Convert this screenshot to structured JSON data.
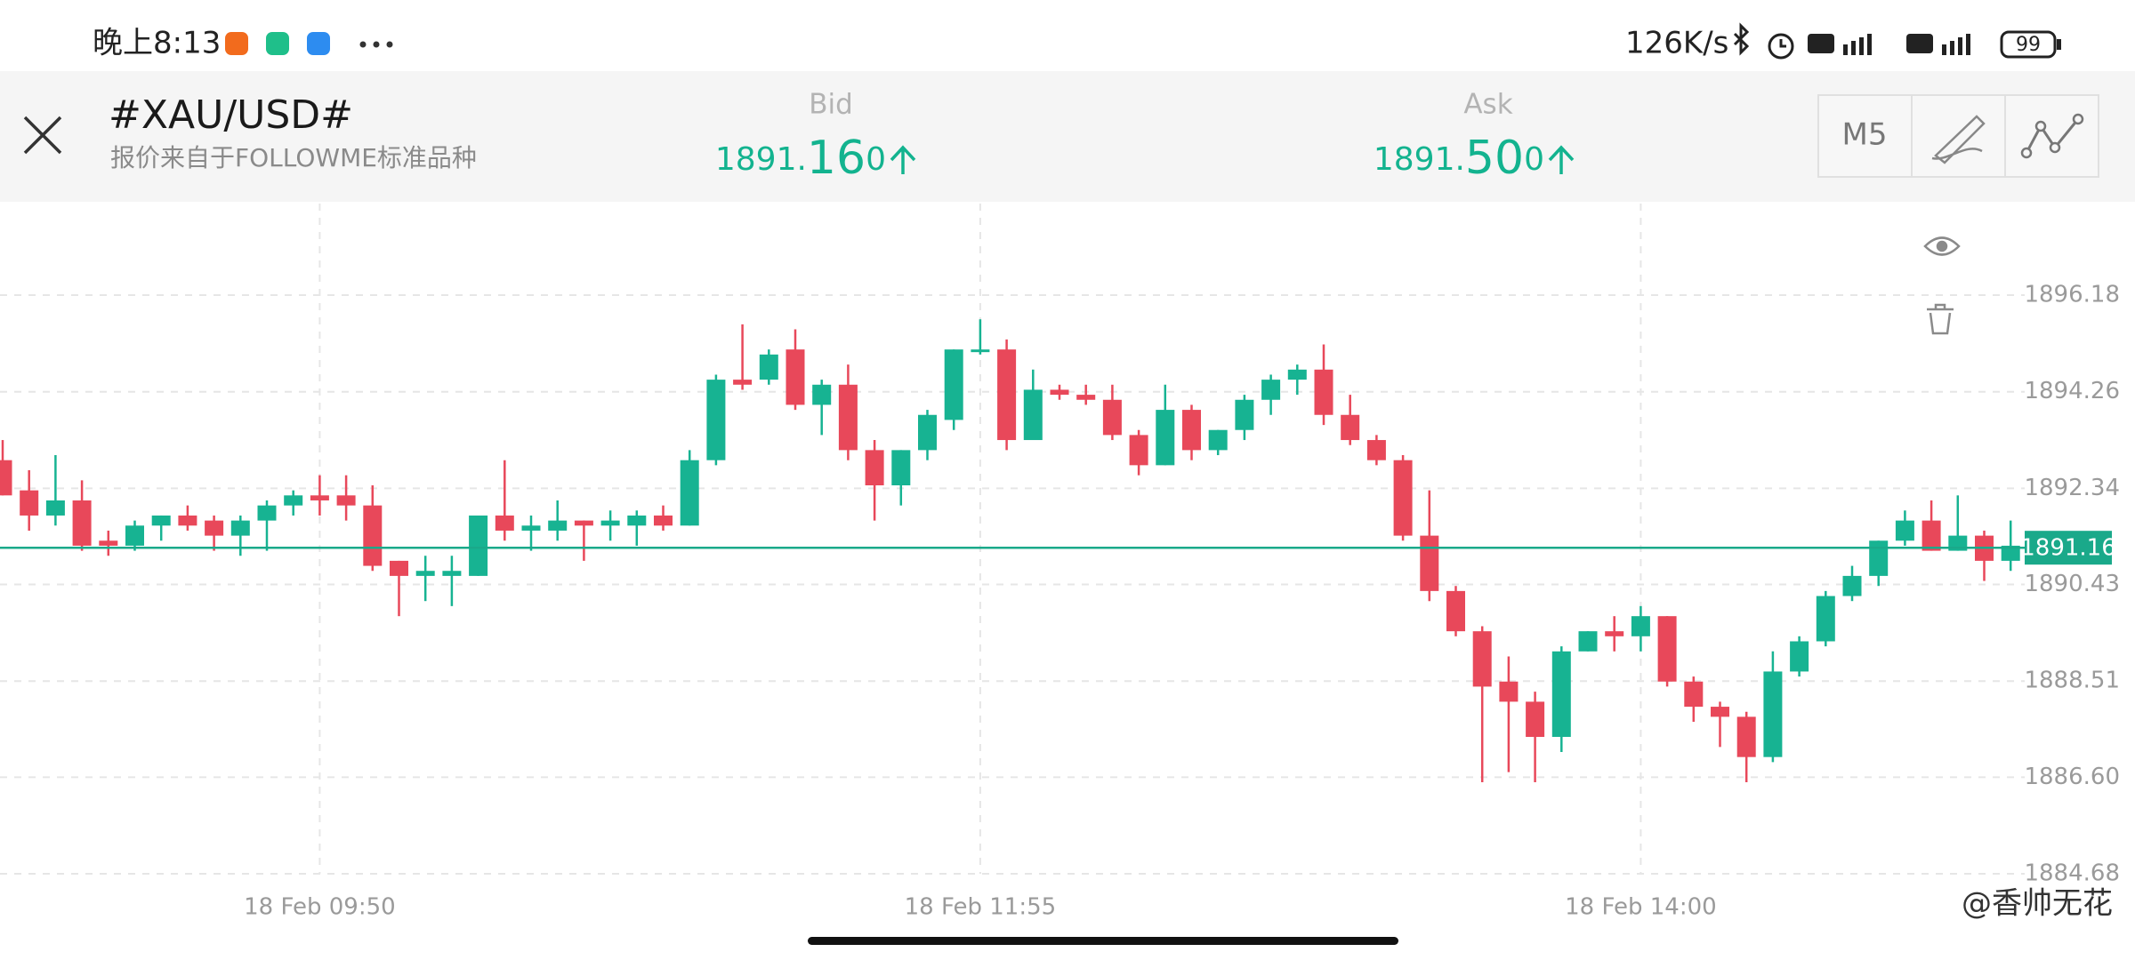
{
  "status_bar": {
    "time": "晚上8:13",
    "speed": "126K/s",
    "battery": "99"
  },
  "header": {
    "title": "#XAU/USD#",
    "subtitle": "报价来自于FOLLOWME标准品种",
    "bid": {
      "label": "Bid",
      "price_main": "1891.",
      "price_big": "16",
      "price_tail": "0"
    },
    "ask": {
      "label": "Ask",
      "price_main": "1891.",
      "price_big": "50",
      "price_tail": "0"
    },
    "timeframe": "M5"
  },
  "chart_data": {
    "type": "candlestick",
    "categories": [
      null,
      null,
      null,
      null,
      null,
      null,
      null,
      null,
      null,
      null,
      null,
      null,
      "18 Feb  09:50",
      null,
      null,
      null,
      null,
      null,
      null,
      null,
      null,
      null,
      null,
      null,
      null,
      null,
      null,
      null,
      null,
      null,
      null,
      null,
      null,
      null,
      null,
      null,
      null,
      "18 Feb  11:55",
      null,
      null,
      null,
      null,
      null,
      null,
      null,
      null,
      null,
      null,
      null,
      null,
      null,
      null,
      null,
      null,
      null,
      null,
      null,
      null,
      null,
      null,
      null,
      null,
      "18 Feb  14:00",
      null,
      null,
      null,
      null,
      null,
      null,
      null,
      null,
      null,
      null,
      null,
      null,
      null,
      null
    ],
    "open": [
      1892.9,
      1892.3,
      1891.8,
      1892.1,
      1891.3,
      1891.2,
      1891.6,
      1891.8,
      1891.7,
      1891.4,
      1891.7,
      1892.0,
      1892.2,
      1892.2,
      1892.0,
      1890.9,
      1890.6,
      1890.6,
      1890.6,
      1891.8,
      1891.5,
      1891.5,
      1891.7,
      1891.6,
      1891.6,
      1891.8,
      1891.6,
      1892.9,
      1894.5,
      1894.5,
      1895.1,
      1894.0,
      1894.4,
      1893.1,
      1892.4,
      1893.1,
      1893.7,
      1895.1,
      1895.1,
      1893.3,
      1894.3,
      1894.2,
      1894.1,
      1893.4,
      1892.8,
      1893.9,
      1893.1,
      1893.5,
      1894.1,
      1894.5,
      1894.7,
      1893.8,
      1893.3,
      1892.9,
      1891.4,
      1890.3,
      1889.5,
      1888.5,
      1888.1,
      1887.4,
      1889.1,
      1889.5,
      1889.4,
      1889.8,
      1888.5,
      1888.0,
      1887.8,
      1887.0,
      1888.7,
      1889.3,
      1890.2,
      1890.6,
      1891.3,
      1891.7,
      1891.1,
      1891.4,
      1890.9
    ],
    "high": [
      1893.3,
      1892.7,
      1893.0,
      1892.5,
      1891.5,
      1891.7,
      1891.8,
      1892.0,
      1891.8,
      1891.8,
      1892.1,
      1892.3,
      1892.6,
      1892.6,
      1892.4,
      1890.9,
      1891.0,
      1891.0,
      1891.8,
      1892.9,
      1891.8,
      1892.1,
      1891.7,
      1891.9,
      1891.9,
      1892.0,
      1893.1,
      1894.6,
      1895.6,
      1895.1,
      1895.5,
      1894.5,
      1894.8,
      1893.3,
      1893.1,
      1893.9,
      1895.1,
      1895.7,
      1895.3,
      1894.7,
      1894.4,
      1894.4,
      1894.4,
      1893.5,
      1894.4,
      1894.0,
      1893.5,
      1894.2,
      1894.6,
      1894.8,
      1895.2,
      1894.2,
      1893.4,
      1893.0,
      1892.3,
      1890.4,
      1889.6,
      1889.0,
      1888.3,
      1889.2,
      1889.5,
      1889.8,
      1890.0,
      1889.8,
      1888.6,
      1888.1,
      1887.9,
      1889.1,
      1889.4,
      1890.3,
      1890.8,
      1891.3,
      1891.9,
      1892.1,
      1892.2,
      1891.5,
      1891.7
    ],
    "low": [
      1892.2,
      1891.5,
      1891.6,
      1891.1,
      1891.0,
      1891.1,
      1891.3,
      1891.5,
      1891.1,
      1891.0,
      1891.1,
      1891.8,
      1891.8,
      1891.7,
      1890.7,
      1889.8,
      1890.1,
      1890.0,
      1890.6,
      1891.3,
      1891.1,
      1891.3,
      1890.9,
      1891.3,
      1891.2,
      1891.5,
      1891.6,
      1892.8,
      1894.3,
      1894.4,
      1893.9,
      1893.4,
      1892.9,
      1891.7,
      1892.0,
      1892.9,
      1893.5,
      1895.0,
      1893.1,
      1893.3,
      1894.1,
      1894.0,
      1893.3,
      1892.6,
      1892.8,
      1892.9,
      1893.0,
      1893.3,
      1893.8,
      1894.2,
      1893.6,
      1893.2,
      1892.8,
      1891.3,
      1890.1,
      1889.4,
      1886.5,
      1886.7,
      1886.5,
      1887.1,
      1889.1,
      1889.1,
      1889.1,
      1888.4,
      1887.7,
      1887.2,
      1886.5,
      1886.9,
      1888.6,
      1889.2,
      1890.1,
      1890.4,
      1891.2,
      1891.1,
      1891.1,
      1890.5,
      1890.7
    ],
    "close": [
      1892.2,
      1891.8,
      1892.1,
      1891.2,
      1891.2,
      1891.6,
      1891.8,
      1891.6,
      1891.4,
      1891.7,
      1892.0,
      1892.2,
      1892.1,
      1892.0,
      1890.8,
      1890.6,
      1890.7,
      1890.7,
      1891.8,
      1891.5,
      1891.6,
      1891.7,
      1891.6,
      1891.7,
      1891.8,
      1891.6,
      1892.9,
      1894.5,
      1894.4,
      1895.0,
      1894.0,
      1894.4,
      1893.1,
      1892.4,
      1893.1,
      1893.8,
      1895.1,
      1895.1,
      1893.3,
      1894.3,
      1894.2,
      1894.1,
      1893.4,
      1892.8,
      1893.9,
      1893.1,
      1893.5,
      1894.1,
      1894.5,
      1894.7,
      1893.8,
      1893.3,
      1892.9,
      1891.4,
      1890.3,
      1889.5,
      1888.4,
      1888.1,
      1887.4,
      1889.1,
      1889.5,
      1889.4,
      1889.8,
      1888.5,
      1888.0,
      1887.8,
      1887.0,
      1888.7,
      1889.3,
      1890.2,
      1890.6,
      1891.3,
      1891.7,
      1891.1,
      1891.4,
      1890.9,
      1891.2
    ],
    "up_color": "#17b392",
    "down_color": "#e8485a",
    "last_price": 1891.16,
    "last_price_color": "#1aa98a",
    "ylim": [
      1884.68,
      1898.0
    ],
    "yticks": [
      1884.68,
      {
        "value": 1886.6,
        "label": "1886.60"
      },
      1888.51,
      1890.43,
      1892.34,
      1894.26,
      1896.18
    ],
    "grid": true
  },
  "watermark": "@香帅无花"
}
